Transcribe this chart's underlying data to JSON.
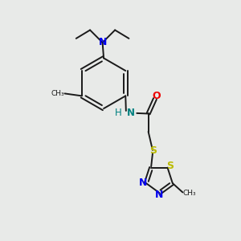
{
  "bg_color": "#e8eae8",
  "bond_color": "#1a1a1a",
  "N_color": "#0000ee",
  "O_color": "#ee0000",
  "S_color": "#bbbb00",
  "NH_color": "#008080",
  "figsize": [
    3.0,
    3.0
  ],
  "dpi": 100,
  "xlim": [
    0,
    10
  ],
  "ylim": [
    0,
    10
  ]
}
